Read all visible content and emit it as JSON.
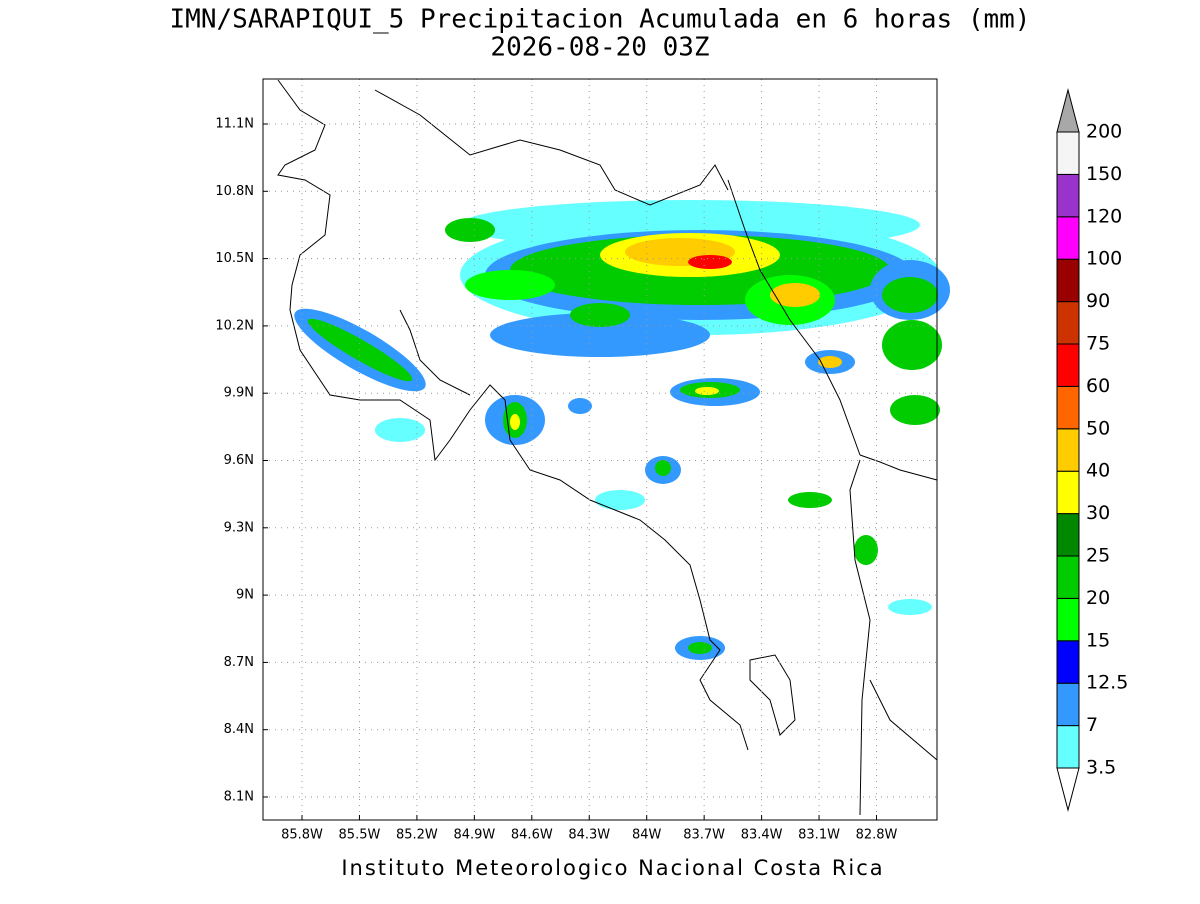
{
  "header": {
    "title": "IMN/SARAPIQUI_5 Precipitacion Acumulada en 6 horas (mm)",
    "subtitle": "2026-08-20 03Z"
  },
  "map": {
    "lat_labels": [
      "11.1N",
      "10.8N",
      "10.5N",
      "10.2N",
      "9.9N",
      "9.6N",
      "9.3N",
      "9N",
      "8.7N",
      "8.4N",
      "8.1N"
    ],
    "lon_labels": [
      "85.8W",
      "85.5W",
      "85.2W",
      "84.9W",
      "84.6W",
      "84.3W",
      "84W",
      "83.7W",
      "83.4W",
      "83.1W",
      "82.8W"
    ]
  },
  "colorbar": {
    "levels": [
      "3.5",
      "7",
      "12.5",
      "15",
      "20",
      "25",
      "30",
      "40",
      "50",
      "60",
      "75",
      "90",
      "100",
      "120",
      "150",
      "200"
    ],
    "colors": [
      "#66ffff",
      "#3399ff",
      "#0000ff",
      "#00ff00",
      "#00cc00",
      "#008800",
      "#ffff00",
      "#ffcc00",
      "#ff6600",
      "#ff0000",
      "#cc3300",
      "#990000",
      "#ff00ff",
      "#9933cc",
      "#f5f5f5"
    ],
    "under_color": "#ffffff",
    "over_color": "#a8a8a8"
  },
  "footer": "Instituto Meteorologico Nacional Costa Rica"
}
